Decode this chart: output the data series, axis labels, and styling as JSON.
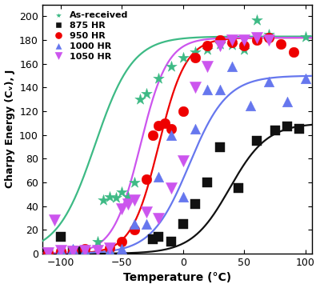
{
  "title": "",
  "xlabel": "Temperature (°C)",
  "ylabel": "Charpy Energy (Cᵥ), J",
  "xlim": [
    -115,
    105
  ],
  "ylim": [
    0,
    210
  ],
  "xticks": [
    -100,
    -50,
    0,
    50,
    100
  ],
  "yticks": [
    0,
    20,
    40,
    60,
    80,
    100,
    120,
    140,
    160,
    180,
    200
  ],
  "series": [
    {
      "label": "As-received",
      "color": "#3dba85",
      "marker": "*",
      "marker_size": 9,
      "curve_upper": 183,
      "curve_t0": -72,
      "curve_k": 0.065,
      "scatter_x": [
        -100,
        -90,
        -80,
        -70,
        -65,
        -60,
        -55,
        -50,
        -45,
        -40,
        -35,
        -30,
        -20,
        -10,
        0,
        10,
        20,
        30,
        40,
        50,
        60,
        70,
        100
      ],
      "scatter_y": [
        1,
        2,
        3,
        10,
        45,
        48,
        47,
        52,
        48,
        60,
        130,
        135,
        148,
        158,
        165,
        170,
        172,
        177,
        176,
        172,
        197,
        185,
        183
      ]
    },
    {
      "label": "875 HR",
      "color": "#111111",
      "marker": "s",
      "marker_size": 7,
      "curve_upper": 110,
      "curve_t0": 38,
      "curve_k": 0.065,
      "scatter_x": [
        -110,
        -100,
        -90,
        -85,
        -25,
        -20,
        -10,
        0,
        10,
        20,
        30,
        45,
        60,
        75,
        85,
        95
      ],
      "scatter_y": [
        1,
        14,
        2,
        2,
        12,
        14,
        10,
        25,
        42,
        60,
        90,
        55,
        95,
        104,
        107,
        105
      ]
    },
    {
      "label": "950 HR",
      "color": "#ee0000",
      "marker": "o",
      "marker_size": 8,
      "curve_upper": 182,
      "curve_t0": -20,
      "curve_k": 0.09,
      "scatter_x": [
        -110,
        -100,
        -90,
        -80,
        -60,
        -50,
        -40,
        -30,
        -25,
        -20,
        -15,
        -10,
        0,
        10,
        20,
        30,
        40,
        50,
        60,
        70,
        80,
        90
      ],
      "scatter_y": [
        1,
        2,
        2,
        4,
        5,
        10,
        20,
        63,
        100,
        108,
        110,
        105,
        120,
        165,
        175,
        180,
        178,
        175,
        180,
        182,
        177,
        170
      ]
    },
    {
      "label": "1000 HR",
      "color": "#6677ee",
      "marker": "^",
      "marker_size": 8,
      "curve_upper": 150,
      "curve_t0": 5,
      "curve_k": 0.065,
      "scatter_x": [
        -110,
        -100,
        -90,
        -80,
        -60,
        -50,
        -40,
        -30,
        -20,
        -10,
        0,
        10,
        20,
        30,
        40,
        55,
        70,
        85,
        100
      ],
      "scatter_y": [
        1,
        3,
        4,
        3,
        3,
        4,
        25,
        25,
        65,
        100,
        48,
        105,
        138,
        138,
        158,
        125,
        145,
        128,
        148
      ]
    },
    {
      "label": "1050 HR",
      "color": "#cc55ee",
      "marker": "v",
      "marker_size": 9,
      "curve_upper": 182,
      "curve_t0": -35,
      "curve_k": 0.09,
      "scatter_x": [
        -110,
        -105,
        -100,
        -90,
        -80,
        -70,
        -60,
        -50,
        -45,
        -40,
        -30,
        -20,
        -10,
        0,
        10,
        20,
        30,
        40,
        50,
        60,
        70
      ],
      "scatter_y": [
        1,
        28,
        3,
        2,
        3,
        3,
        5,
        38,
        42,
        45,
        35,
        30,
        55,
        78,
        140,
        158,
        175,
        180,
        180,
        182,
        180
      ]
    }
  ],
  "legend_loc": "upper left",
  "background_color": "#ffffff"
}
